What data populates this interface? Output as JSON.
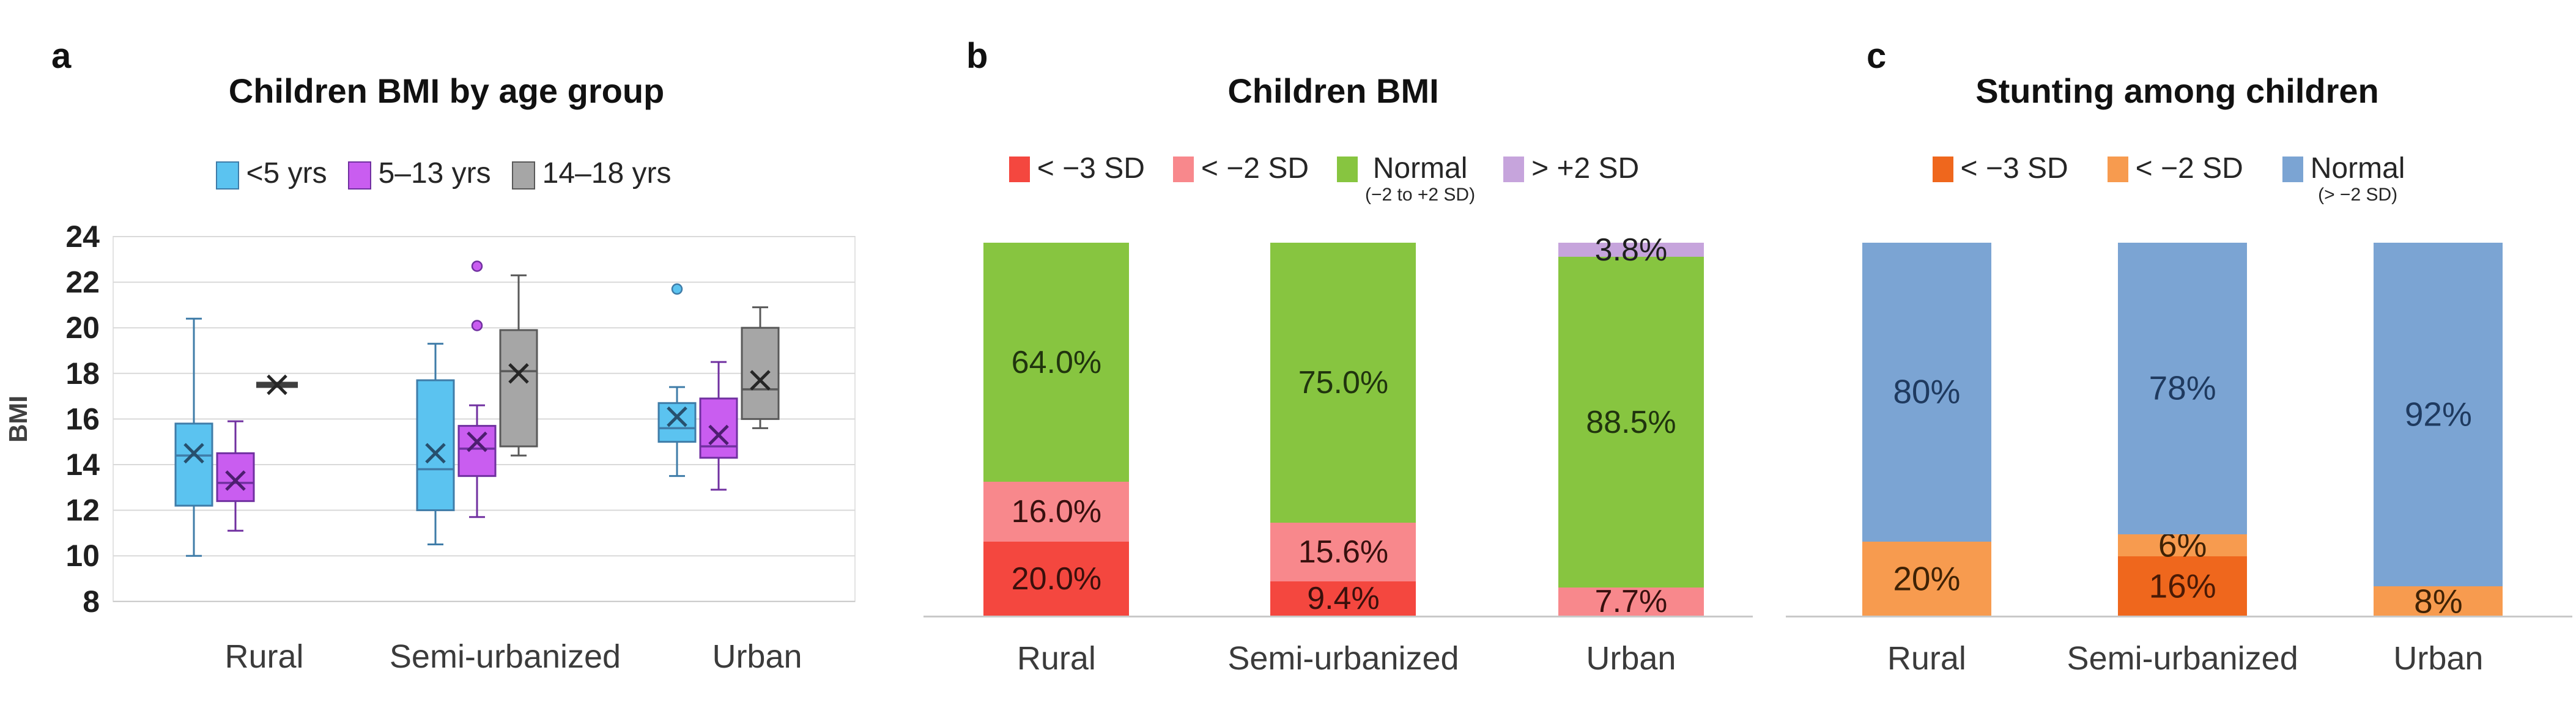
{
  "letters": [
    "a",
    "b",
    "c"
  ],
  "categories": [
    "Rural",
    "Semi-urbanized",
    "Urban"
  ],
  "axis": {
    "ylabel": "BMI",
    "yticks": [
      8,
      10,
      12,
      14,
      16,
      18,
      20,
      22,
      24
    ]
  },
  "colors": {
    "grid": "#d9d9d9",
    "axis": "#c9c9c9",
    "tick_text": "#1f1f1f",
    "category_text": "#3b3b3b"
  },
  "chart_data": [
    {
      "type": "boxplot",
      "title": "Children BMI by age group",
      "xlabel": "",
      "ylabel": "BMI",
      "ylim": [
        8,
        24
      ],
      "ytick_step": 2,
      "grid": true,
      "legend_position": "top",
      "categories": [
        "Rural",
        "Semi-urbanized",
        "Urban"
      ],
      "series": [
        {
          "name": "<5 yrs",
          "fill": "#5bc3f0",
          "stroke": "#3f7ca8",
          "mean_color": "#27506e",
          "boxes": [
            {
              "low": 10.0,
              "q1": 12.2,
              "median": 14.4,
              "q3": 15.8,
              "high": 20.4,
              "mean": 14.5,
              "outliers": []
            },
            {
              "low": 10.5,
              "q1": 12.0,
              "median": 13.8,
              "q3": 17.7,
              "high": 19.3,
              "mean": 14.5,
              "outliers": []
            },
            {
              "low": 13.5,
              "q1": 15.0,
              "median": 15.6,
              "q3": 16.7,
              "high": 17.4,
              "mean": 16.1,
              "outliers": [
                21.7
              ]
            }
          ]
        },
        {
          "name": "5–13 yrs",
          "fill": "#c95df0",
          "stroke": "#7030a0",
          "mean_color": "#4d1e70",
          "boxes": [
            {
              "low": 11.1,
              "q1": 12.4,
              "median": 13.2,
              "q3": 14.5,
              "high": 15.9,
              "mean": 13.3,
              "outliers": []
            },
            {
              "low": 11.7,
              "q1": 13.5,
              "median": 14.7,
              "q3": 15.7,
              "high": 16.6,
              "mean": 15.0,
              "outliers": [
                20.1,
                22.7
              ]
            },
            {
              "low": 12.9,
              "q1": 14.3,
              "median": 14.8,
              "q3": 16.9,
              "high": 18.5,
              "mean": 15.3,
              "outliers": []
            }
          ]
        },
        {
          "name": "14–18 yrs",
          "fill": "#a6a6a6",
          "stroke": "#595959",
          "mean_color": "#262626",
          "boxes": [
            {
              "low": 17.5,
              "q1": 17.5,
              "median": 17.5,
              "q3": 17.5,
              "high": 17.5,
              "mean": 17.5,
              "outliers": []
            },
            {
              "low": 14.4,
              "q1": 14.8,
              "median": 18.1,
              "q3": 19.9,
              "high": 22.3,
              "mean": 18.0,
              "outliers": []
            },
            {
              "low": 15.6,
              "q1": 16.0,
              "median": 17.3,
              "q3": 20.0,
              "high": 20.9,
              "mean": 17.7,
              "outliers": []
            }
          ]
        }
      ]
    },
    {
      "type": "bar",
      "stacked": true,
      "title": "Children BMI",
      "xlabel": "",
      "ylabel": "",
      "ylim": [
        0,
        100
      ],
      "grid": false,
      "legend_position": "top",
      "categories": [
        "Rural",
        "Semi-urbanized",
        "Urban"
      ],
      "series": [
        {
          "name": "< −3 SD",
          "sub": "",
          "color": "#f4473f",
          "label_color": "#3a100c",
          "values": [
            20.0,
            9.4,
            0
          ],
          "labels": [
            "20.0%",
            "9.4%",
            ""
          ]
        },
        {
          "name": "< −2 SD",
          "sub": "",
          "color": "#f8888c",
          "label_color": "#38100e",
          "values": [
            16.0,
            15.6,
            7.7
          ],
          "labels": [
            "16.0%",
            "15.6%",
            "7.7%"
          ]
        },
        {
          "name": "Normal",
          "sub": "(−2 to +2 SD)",
          "color": "#87c540",
          "label_color": "#20340e",
          "values": [
            64.0,
            75.0,
            88.5
          ],
          "labels": [
            "64.0%",
            "75.0%",
            "88.5%"
          ]
        },
        {
          "name": "> +2 SD",
          "sub": "",
          "color": "#c6a4dc",
          "label_color": "#1f1f1f",
          "values": [
            0,
            0,
            3.8
          ],
          "labels": [
            "",
            "",
            "3.8%"
          ]
        }
      ]
    },
    {
      "type": "bar",
      "stacked": true,
      "title": "Stunting among children",
      "xlabel": "",
      "ylabel": "",
      "ylim": [
        0,
        100
      ],
      "grid": false,
      "legend_position": "top",
      "categories": [
        "Rural",
        "Semi-urbanized",
        "Urban"
      ],
      "series": [
        {
          "name": "< −3 SD",
          "sub": "",
          "color": "#ef671d",
          "label_color": "#4a1a05",
          "values": [
            0,
            16,
            0
          ],
          "labels": [
            "",
            "16%",
            ""
          ]
        },
        {
          "name": "< −2 SD",
          "sub": "",
          "color": "#f79b4f",
          "label_color": "#3f2205",
          "values": [
            20,
            6,
            8
          ],
          "labels": [
            "20%",
            "6%",
            "8%"
          ]
        },
        {
          "name": "Normal",
          "sub": "(> −2 SD)",
          "color": "#7ba4d3",
          "label_color": "#1f3a5f",
          "values": [
            80,
            78,
            92
          ],
          "labels": [
            "80%",
            "78%",
            "92%"
          ]
        }
      ]
    }
  ]
}
